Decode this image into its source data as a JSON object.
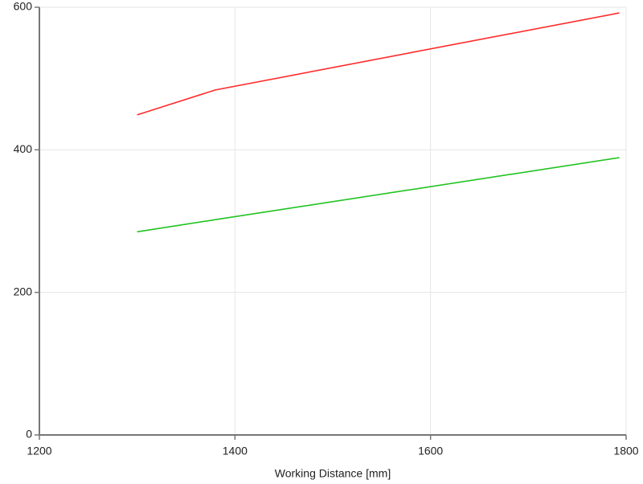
{
  "chart_data": {
    "type": "line",
    "x_label": "Working Distance [mm]",
    "x": [
      1300,
      1380,
      1793
    ],
    "series": [
      {
        "color": "#ff2a2a",
        "values": [
          449,
          484,
          592
        ]
      },
      {
        "color": "#22c322",
        "values": [
          285,
          302,
          389
        ]
      }
    ],
    "xlim": [
      1200,
      1800
    ],
    "xticks": [
      1200,
      1400,
      1600,
      1800
    ],
    "ylim": [
      0,
      600
    ],
    "yticks": [
      0,
      200,
      400,
      600
    ],
    "grid": true
  }
}
